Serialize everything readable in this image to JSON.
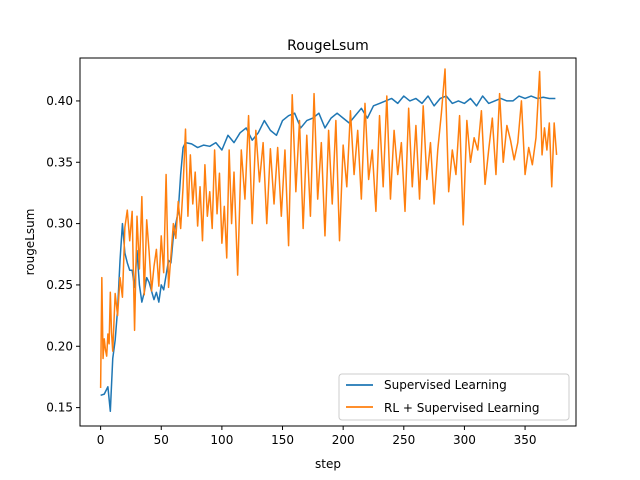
{
  "chart_data": {
    "type": "line",
    "title": "RougeLsum",
    "xlabel": "step",
    "ylabel": "rougeLsum",
    "xlim": [
      -17,
      392
    ],
    "ylim": [
      0.135,
      0.435
    ],
    "xticks": [
      0,
      50,
      100,
      150,
      200,
      250,
      300,
      350
    ],
    "yticks": [
      0.15,
      0.2,
      0.25,
      0.3,
      0.35,
      0.4
    ],
    "ytick_labels": [
      "0.15",
      "0.20",
      "0.25",
      "0.30",
      "0.35",
      "0.40"
    ],
    "grid": false,
    "legend_position": "lower-right",
    "series": [
      {
        "name": "Supervised Learning",
        "color": "#1f77b4",
        "x": [
          0,
          3,
          6,
          8,
          10,
          12,
          14,
          16,
          18,
          20,
          22,
          24,
          26,
          28,
          30,
          32,
          34,
          36,
          38,
          40,
          42,
          44,
          46,
          48,
          50,
          52,
          54,
          56,
          58,
          60,
          62,
          64,
          66,
          68,
          70,
          75,
          80,
          85,
          90,
          95,
          100,
          105,
          110,
          115,
          120,
          125,
          130,
          135,
          140,
          145,
          150,
          155,
          160,
          165,
          170,
          175,
          180,
          185,
          190,
          195,
          200,
          205,
          210,
          215,
          220,
          225,
          230,
          235,
          240,
          245,
          250,
          255,
          260,
          265,
          270,
          275,
          280,
          285,
          290,
          295,
          300,
          305,
          310,
          315,
          320,
          325,
          330,
          335,
          340,
          345,
          350,
          355,
          360,
          365,
          370,
          375
        ],
        "values": [
          0.16,
          0.161,
          0.167,
          0.147,
          0.19,
          0.205,
          0.23,
          0.27,
          0.3,
          0.276,
          0.268,
          0.262,
          0.262,
          0.248,
          0.278,
          0.25,
          0.236,
          0.244,
          0.256,
          0.252,
          0.245,
          0.238,
          0.244,
          0.236,
          0.25,
          0.246,
          0.258,
          0.27,
          0.268,
          0.29,
          0.3,
          0.31,
          0.34,
          0.362,
          0.366,
          0.365,
          0.362,
          0.364,
          0.363,
          0.366,
          0.36,
          0.372,
          0.366,
          0.374,
          0.378,
          0.368,
          0.374,
          0.384,
          0.376,
          0.372,
          0.384,
          0.388,
          0.39,
          0.378,
          0.384,
          0.386,
          0.39,
          0.378,
          0.386,
          0.39,
          0.386,
          0.382,
          0.388,
          0.394,
          0.386,
          0.396,
          0.398,
          0.4,
          0.402,
          0.398,
          0.404,
          0.4,
          0.402,
          0.398,
          0.404,
          0.396,
          0.402,
          0.404,
          0.398,
          0.4,
          0.398,
          0.402,
          0.396,
          0.404,
          0.398,
          0.4,
          0.402,
          0.4,
          0.4,
          0.404,
          0.402,
          0.404,
          0.402,
          0.403,
          0.402,
          0.402
        ]
      },
      {
        "name": "RL + Supervised Learning",
        "color": "#ff7f0e",
        "x": [
          0,
          1,
          2,
          3,
          4,
          5,
          6,
          7,
          8,
          9,
          10,
          12,
          14,
          16,
          18,
          20,
          22,
          24,
          26,
          28,
          30,
          32,
          34,
          36,
          38,
          40,
          42,
          44,
          46,
          48,
          50,
          52,
          54,
          56,
          58,
          60,
          62,
          64,
          66,
          68,
          70,
          72,
          74,
          76,
          78,
          80,
          82,
          84,
          86,
          88,
          90,
          92,
          94,
          96,
          98,
          100,
          102,
          104,
          106,
          108,
          110,
          113,
          116,
          119,
          122,
          125,
          128,
          131,
          134,
          137,
          140,
          143,
          146,
          149,
          152,
          155,
          158,
          161,
          164,
          167,
          170,
          173,
          176,
          179,
          182,
          185,
          188,
          191,
          194,
          197,
          200,
          203,
          206,
          209,
          212,
          215,
          218,
          221,
          224,
          227,
          230,
          233,
          236,
          239,
          242,
          245,
          248,
          251,
          254,
          257,
          260,
          263,
          266,
          269,
          272,
          275,
          278,
          281,
          284,
          287,
          290,
          293,
          296,
          299,
          302,
          305,
          308,
          311,
          314,
          317,
          320,
          323,
          326,
          329,
          332,
          335,
          338,
          341,
          344,
          347,
          350,
          353,
          356,
          359,
          362,
          364,
          366,
          368,
          370,
          372,
          374,
          376
        ],
        "values": [
          0.166,
          0.256,
          0.19,
          0.206,
          0.197,
          0.192,
          0.21,
          0.202,
          0.244,
          0.211,
          0.196,
          0.243,
          0.225,
          0.256,
          0.24,
          0.297,
          0.311,
          0.286,
          0.31,
          0.213,
          0.306,
          0.263,
          0.322,
          0.242,
          0.303,
          0.277,
          0.245,
          0.265,
          0.279,
          0.249,
          0.29,
          0.26,
          0.34,
          0.248,
          0.274,
          0.3,
          0.288,
          0.318,
          0.296,
          0.33,
          0.377,
          0.306,
          0.356,
          0.316,
          0.342,
          0.298,
          0.33,
          0.286,
          0.348,
          0.306,
          0.326,
          0.296,
          0.36,
          0.308,
          0.341,
          0.284,
          0.314,
          0.272,
          0.36,
          0.3,
          0.342,
          0.258,
          0.36,
          0.32,
          0.388,
          0.3,
          0.376,
          0.334,
          0.366,
          0.3,
          0.361,
          0.316,
          0.362,
          0.306,
          0.36,
          0.282,
          0.405,
          0.326,
          0.384,
          0.296,
          0.372,
          0.306,
          0.406,
          0.32,
          0.366,
          0.29,
          0.376,
          0.316,
          0.384,
          0.286,
          0.364,
          0.33,
          0.392,
          0.34,
          0.376,
          0.32,
          0.398,
          0.336,
          0.36,
          0.31,
          0.388,
          0.33,
          0.404,
          0.32,
          0.376,
          0.34,
          0.366,
          0.31,
          0.394,
          0.33,
          0.38,
          0.32,
          0.396,
          0.336,
          0.366,
          0.316,
          0.36,
          0.39,
          0.426,
          0.326,
          0.36,
          0.34,
          0.388,
          0.299,
          0.384,
          0.35,
          0.37,
          0.36,
          0.392,
          0.332,
          0.36,
          0.386,
          0.34,
          0.406,
          0.35,
          0.38,
          0.368,
          0.352,
          0.366,
          0.4,
          0.34,
          0.362,
          0.348,
          0.37,
          0.424,
          0.356,
          0.378,
          0.36,
          0.382,
          0.33,
          0.382,
          0.356
        ]
      }
    ]
  }
}
